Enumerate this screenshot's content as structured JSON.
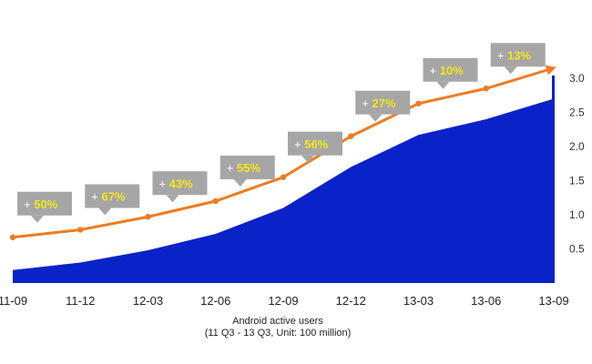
{
  "chart_data": {
    "type": "area",
    "title": "",
    "xlabel": "Android active users",
    "xlabel_note": "(11 Q3 - 13 Q3, Unit: 100 million)",
    "ylabel": "",
    "ylim": [
      0,
      3.2
    ],
    "y_ticks": [
      "0.5",
      "1.0",
      "1.5",
      "2.0",
      "2.5",
      "3.0"
    ],
    "y_axis_position": "right",
    "grid": false,
    "legend": "none",
    "categories": [
      "11-09",
      "11-12",
      "12-03",
      "12-06",
      "12-09",
      "12-12",
      "13-03",
      "13-06",
      "13-09"
    ],
    "series": [
      {
        "type": "area",
        "values": [
          0.19,
          0.3,
          0.48,
          0.72,
          1.1,
          1.7,
          2.17,
          2.4,
          2.7
        ],
        "color": "#0a23c8"
      },
      {
        "type": "line",
        "values": [
          0.67,
          0.78,
          0.97,
          1.2,
          1.55,
          2.15,
          2.63,
          2.85,
          3.15
        ],
        "color": "#ef7b22"
      }
    ],
    "annotations": [
      {
        "index": 0,
        "prefix": "+",
        "value": "50%"
      },
      {
        "index": 1,
        "prefix": "+",
        "value": "67%"
      },
      {
        "index": 2,
        "prefix": "+",
        "value": "43%"
      },
      {
        "index": 3,
        "prefix": "+",
        "value": "55%"
      },
      {
        "index": 4,
        "prefix": "+",
        "value": "56%"
      },
      {
        "index": 5,
        "prefix": "+",
        "value": "27%"
      },
      {
        "index": 6,
        "prefix": "+",
        "value": "10%"
      },
      {
        "index": 7,
        "prefix": "+",
        "value": "13%"
      }
    ],
    "colors": {
      "area": "#0a23c8",
      "line": "#ef7b22",
      "callout_box": "#a6a6a6",
      "callout_value": "#f2e81a"
    }
  }
}
